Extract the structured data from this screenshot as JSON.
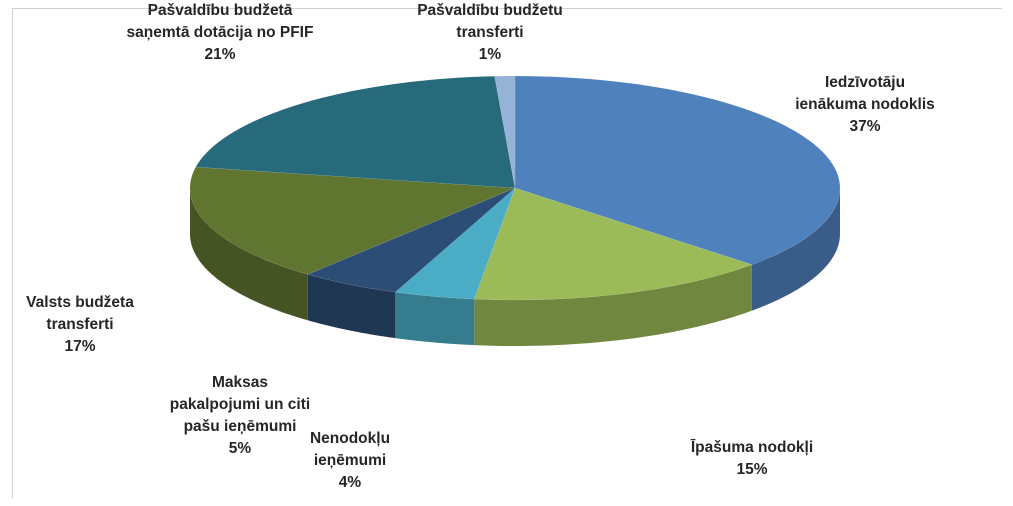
{
  "chart_data": {
    "type": "pie",
    "categories": [
      "Iedzīvotāju ienākuma nodoklis",
      "Īpašuma nodokļi",
      "Nenodokļu ieņēmumi",
      "Maksas pakalpojumi un citi pašu ieņēmumi",
      "Valsts budžeta transferti",
      "Pašvaldību budžetā saņemtā dotācija no PFIF",
      "Pašvaldību budžetu transferti"
    ],
    "values": [
      37,
      15,
      4,
      5,
      17,
      21,
      1
    ],
    "value_labels": [
      "37%",
      "15%",
      "4%",
      "5%",
      "17%",
      "21%",
      "1%"
    ],
    "colors": [
      "#4f81bd",
      "#9bbb59",
      "#4bacc6",
      "#2c4d75",
      "#5f7530",
      "#276a7c",
      "#95b3d7"
    ]
  }
}
